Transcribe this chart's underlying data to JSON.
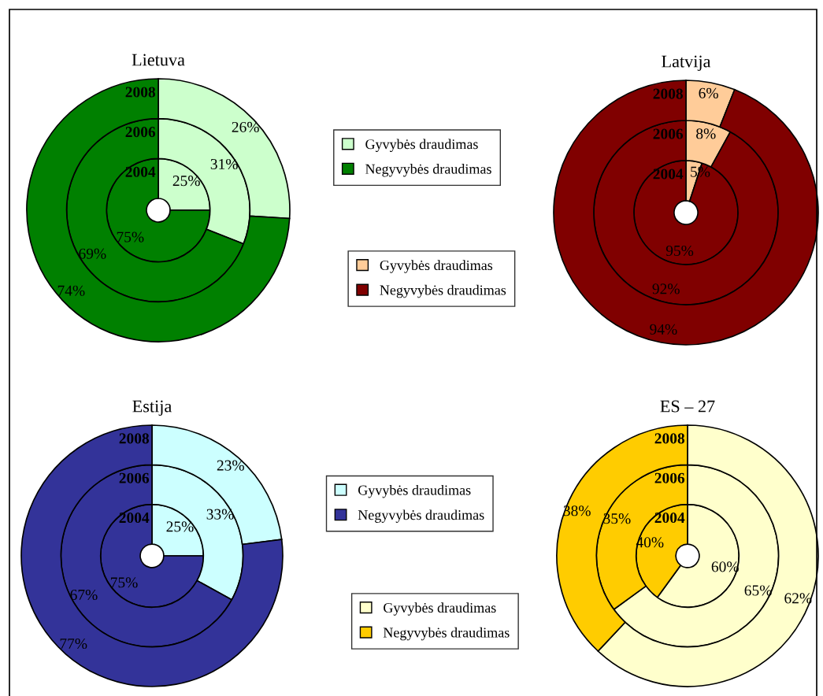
{
  "chart_data": [
    {
      "type": "donut",
      "title": "Lietuva",
      "categories": [
        "Gyvybės draudimas",
        "Negyvybės draudimas"
      ],
      "colors": [
        "#ccffcc",
        "#008000"
      ],
      "series": [
        {
          "name": "2004",
          "values": [
            25,
            75
          ],
          "value_labels": [
            "25%",
            "75%"
          ]
        },
        {
          "name": "2006",
          "values": [
            31,
            69
          ],
          "value_labels": [
            "31%",
            "69%"
          ]
        },
        {
          "name": "2008",
          "values": [
            26,
            74
          ],
          "value_labels": [
            "26%",
            "74%"
          ]
        }
      ],
      "legend": "right"
    },
    {
      "type": "donut",
      "title": "Latvija",
      "categories": [
        "Gyvybės draudimas",
        "Negyvybės draudimas"
      ],
      "colors": [
        "#ffcc99",
        "#800000"
      ],
      "series": [
        {
          "name": "2004",
          "values": [
            5,
            95
          ],
          "value_labels": [
            "5%",
            "95%"
          ]
        },
        {
          "name": "2006",
          "values": [
            8,
            92
          ],
          "value_labels": [
            "8%",
            "92%"
          ]
        },
        {
          "name": "2008",
          "values": [
            6,
            94
          ],
          "value_labels": [
            "6%",
            "94%"
          ]
        }
      ],
      "legend": "left"
    },
    {
      "type": "donut",
      "title": "Estija",
      "categories": [
        "Gyvybės draudimas",
        "Negyvybės draudimas"
      ],
      "colors": [
        "#ccffff",
        "#333399"
      ],
      "series": [
        {
          "name": "2004",
          "values": [
            25,
            75
          ],
          "value_labels": [
            "25%",
            "75%"
          ]
        },
        {
          "name": "2006",
          "values": [
            33,
            67
          ],
          "value_labels": [
            "33%",
            "67%"
          ]
        },
        {
          "name": "2008",
          "values": [
            23,
            77
          ],
          "value_labels": [
            "23%",
            "77%"
          ]
        }
      ],
      "legend": "right"
    },
    {
      "type": "donut",
      "title": "ES – 27",
      "categories": [
        "Gyvybės draudimas",
        "Negyvybės draudimas"
      ],
      "colors": [
        "#ffffcc",
        "#ffcc00"
      ],
      "series": [
        {
          "name": "2004",
          "values": [
            60,
            40
          ],
          "value_labels": [
            "60%",
            "40%"
          ]
        },
        {
          "name": "2006",
          "values": [
            65,
            35
          ],
          "value_labels": [
            "65%",
            "35%"
          ]
        },
        {
          "name": "2008",
          "values": [
            62,
            38
          ],
          "value_labels": [
            "62%",
            "38%"
          ]
        }
      ],
      "legend": "left"
    }
  ]
}
